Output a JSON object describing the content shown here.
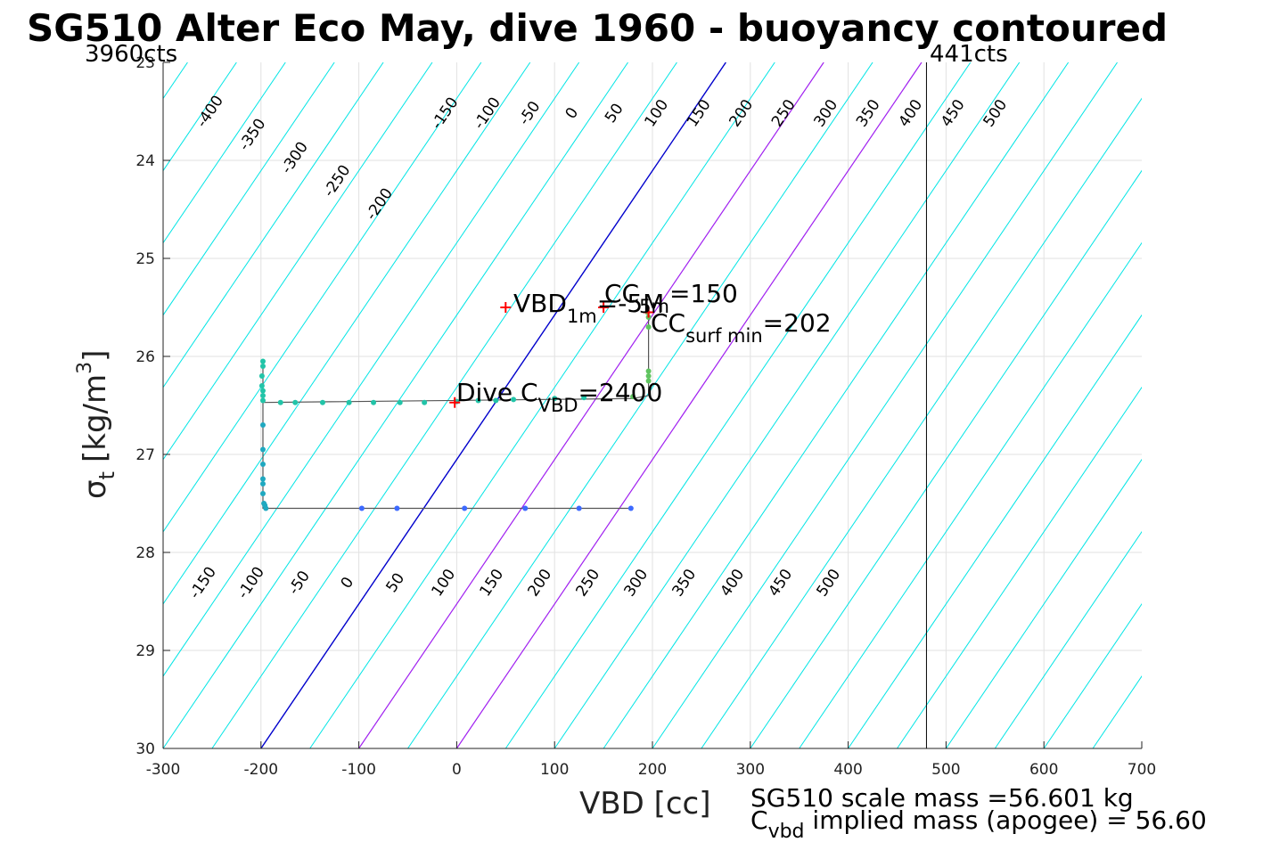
{
  "chart_data": {
    "type": "scatter",
    "title": "SG510 Alter Eco May, dive 1960 - buoyancy contoured",
    "xlabel": "VBD [cc]",
    "ylabel_main": "σ",
    "ylabel_sub": "t",
    "ylabel_unit": "[kg/m",
    "ylabel_unit_sup": "3",
    "ylabel_unit_close": "]",
    "xlim": [
      -300,
      700
    ],
    "ylim": [
      23,
      30
    ],
    "y_reversed": true,
    "grid": true,
    "x_ticks": [
      "-300",
      "-200",
      "-100",
      "0",
      "100",
      "200",
      "300",
      "400",
      "500",
      "600",
      "700"
    ],
    "y_ticks": [
      "23",
      "24",
      "25",
      "26",
      "27",
      "28",
      "29",
      "30"
    ],
    "counts_left": "3960cts",
    "counts_right": "441cts",
    "vbd_limit_line_x": 480,
    "contours_top_labels": [
      "-400",
      "-350",
      "-300",
      "-250",
      "-200",
      "-150",
      "-100",
      "-50",
      "0",
      "50",
      "100",
      "150",
      "200",
      "250",
      "300",
      "350",
      "400",
      "450",
      "500"
    ],
    "contours_bottom_labels": [
      "-150",
      "-100",
      "-50",
      "0",
      "50",
      "100",
      "150",
      "200",
      "250",
      "300",
      "350",
      "400",
      "450",
      "500"
    ],
    "contour_colors": {
      "default": "#00e5e5",
      "zero": "#0000cc",
      "highlight": "#a020f0",
      "limit": "#000000"
    },
    "annotations": {
      "vbd1m_main": "VBD",
      "vbd1m_sub": "1m",
      "vbd1m_tail": "=-5M",
      "cc_main": "CC",
      "cc_sub": "5m",
      "cc_tail": "=150",
      "ccsurf_main": "CC",
      "ccsurf_sub": "surf min",
      "ccsurf_tail": "=202",
      "dive_main": "Dive C",
      "dive_sub": "VBD",
      "dive_tail": "=2400"
    },
    "mass_line1": "SG510 scale mass =56.601 kg",
    "mass_line2_main": "C",
    "mass_line2_sub": "vbd",
    "mass_line2_tail": " implied mass (apogee) = 56.60",
    "series": [
      {
        "color": "#22c4a8",
        "points": [
          [
            -198,
            26.05
          ],
          [
            -198,
            26.1
          ],
          [
            -199,
            26.2
          ],
          [
            -199,
            26.3
          ],
          [
            -198,
            26.35
          ],
          [
            -198,
            26.4
          ],
          [
            -198,
            26.45
          ],
          [
            -180,
            26.47
          ],
          [
            -165,
            26.47
          ],
          [
            -137,
            26.47
          ],
          [
            -110,
            26.47
          ],
          [
            -85,
            26.47
          ],
          [
            -58,
            26.47
          ],
          [
            -33,
            26.47
          ],
          [
            0,
            26.46
          ],
          [
            22,
            26.45
          ],
          [
            40,
            26.45
          ],
          [
            58,
            26.44
          ],
          [
            100,
            26.43
          ],
          [
            130,
            26.42
          ]
        ]
      },
      {
        "color": "#60c460",
        "points": [
          [
            195,
            25.55
          ],
          [
            196,
            25.6
          ],
          [
            196,
            25.7
          ],
          [
            196,
            26.15
          ],
          [
            196,
            26.2
          ],
          [
            196,
            26.25
          ],
          [
            180,
            26.41
          ]
        ]
      },
      {
        "color": "#1fa8c0",
        "points": [
          [
            -198,
            26.7
          ],
          [
            -198,
            26.95
          ],
          [
            -198,
            27.1
          ],
          [
            -198,
            27.25
          ],
          [
            -198,
            27.3
          ],
          [
            -198,
            27.4
          ],
          [
            -197,
            27.5
          ],
          [
            -196,
            27.52
          ],
          [
            -195,
            27.55
          ]
        ]
      },
      {
        "color": "#3d6aff",
        "points": [
          [
            -97,
            27.55
          ],
          [
            -61,
            27.55
          ],
          [
            8,
            27.55
          ],
          [
            70,
            27.55
          ],
          [
            125,
            27.55
          ],
          [
            178,
            27.55
          ]
        ]
      }
    ],
    "path": [
      [
        -198,
        26.05
      ],
      [
        -198,
        26.47
      ],
      [
        180,
        26.43
      ],
      [
        196,
        26.4
      ],
      [
        196,
        25.55
      ],
      [
        196,
        26.4
      ],
      [
        180,
        26.43
      ],
      [
        -198,
        26.47
      ],
      [
        -198,
        27.55
      ],
      [
        180,
        27.55
      ]
    ],
    "red_markers": [
      [
        50,
        25.5
      ],
      [
        150,
        25.5
      ],
      [
        196,
        25.55
      ],
      [
        -2,
        26.47
      ]
    ]
  }
}
